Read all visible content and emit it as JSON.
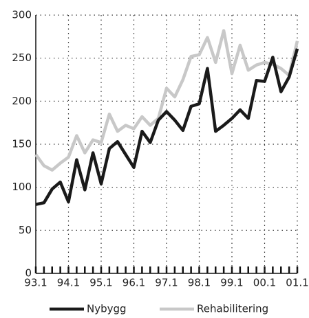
{
  "chart_data": {
    "type": "line",
    "categories": [
      "93.1",
      null,
      null,
      null,
      "94.1",
      null,
      null,
      null,
      "95.1",
      null,
      null,
      null,
      "96.1",
      null,
      null,
      null,
      "97.1",
      null,
      null,
      null,
      "98.1",
      null,
      null,
      null,
      "99.1",
      null,
      null,
      null,
      "00.1",
      null,
      null,
      null,
      "01.1"
    ],
    "series": [
      {
        "name": "Nybygg",
        "color": "#1a1a1a",
        "values": [
          80,
          82,
          98,
          106,
          83,
          132,
          97,
          140,
          104,
          145,
          153,
          138,
          123,
          165,
          152,
          178,
          188,
          178,
          166,
          194,
          197,
          238,
          165,
          172,
          180,
          190,
          180,
          224,
          223,
          251,
          211,
          228,
          261
        ]
      },
      {
        "name": "Rehabilitering",
        "color": "#c8c8c8",
        "values": [
          138,
          125,
          120,
          128,
          135,
          160,
          140,
          155,
          152,
          185,
          165,
          172,
          168,
          182,
          172,
          180,
          215,
          205,
          225,
          252,
          254,
          274,
          245,
          282,
          232,
          265,
          236,
          242,
          245,
          243,
          238,
          230,
          270
        ]
      }
    ],
    "ylim": [
      0,
      300
    ],
    "yticks": [
      0,
      50,
      100,
      150,
      200,
      250,
      300
    ],
    "grid": true,
    "legend": "bottom"
  }
}
